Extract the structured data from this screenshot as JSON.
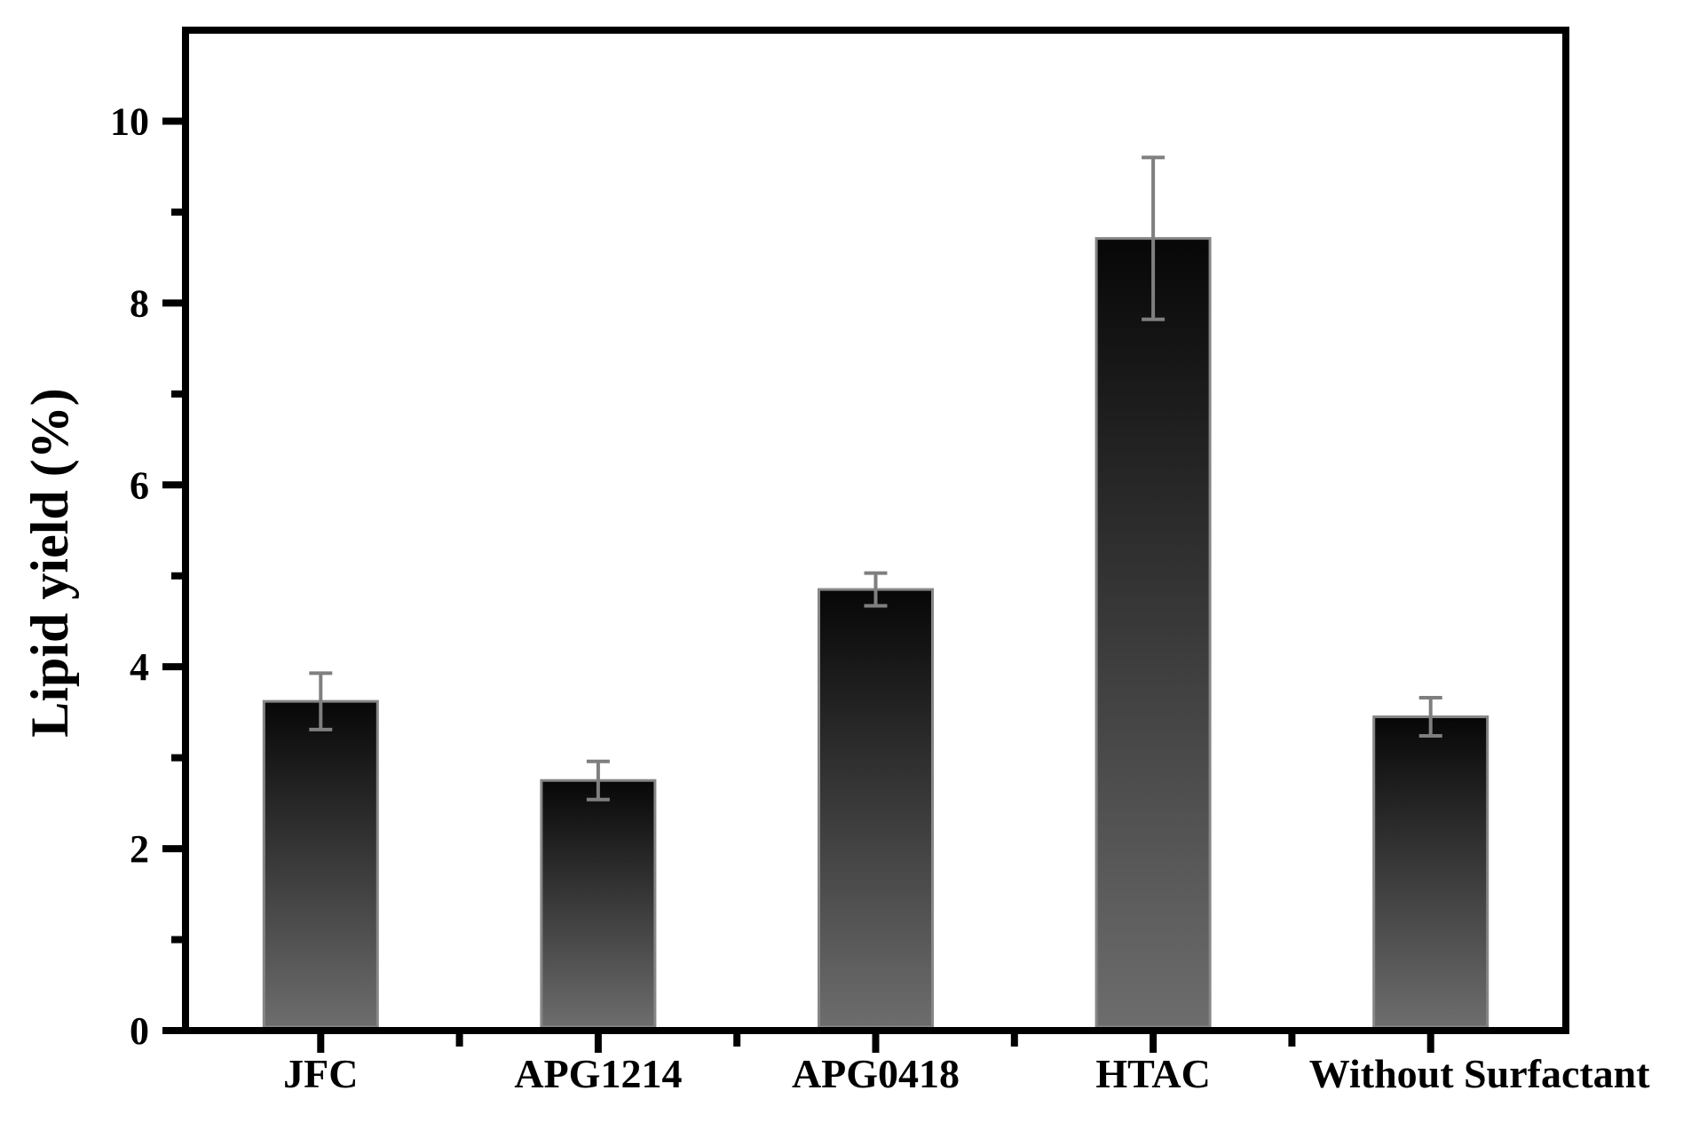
{
  "chart_data": {
    "type": "bar",
    "title": "",
    "xlabel": "",
    "ylabel": "Lipid yield (%)",
    "categories": [
      "JFC",
      "APG1214",
      "APG0418",
      "HTAC",
      "Without Surfactant"
    ],
    "values": [
      3.62,
      2.75,
      4.85,
      8.71,
      3.45
    ],
    "errors": [
      0.31,
      0.21,
      0.18,
      0.89,
      0.21
    ],
    "ylim": [
      0,
      11
    ],
    "yticks": [
      0,
      2,
      4,
      6,
      8,
      10
    ],
    "minor_tick_interval": 1,
    "grid": false,
    "legend": false,
    "error_bar_style": "caps-above-and-below-mean",
    "x_label_dx": [
      0,
      0,
      0,
      0,
      55
    ],
    "colors": {
      "axis": "#000000",
      "text": "#000000",
      "background": "#ffffff",
      "bar_gradient_top": "#070707",
      "bar_gradient_bottom": "#6d6d6d",
      "bar_outline": "#868686",
      "error_bar": "#7f7f7f"
    }
  }
}
